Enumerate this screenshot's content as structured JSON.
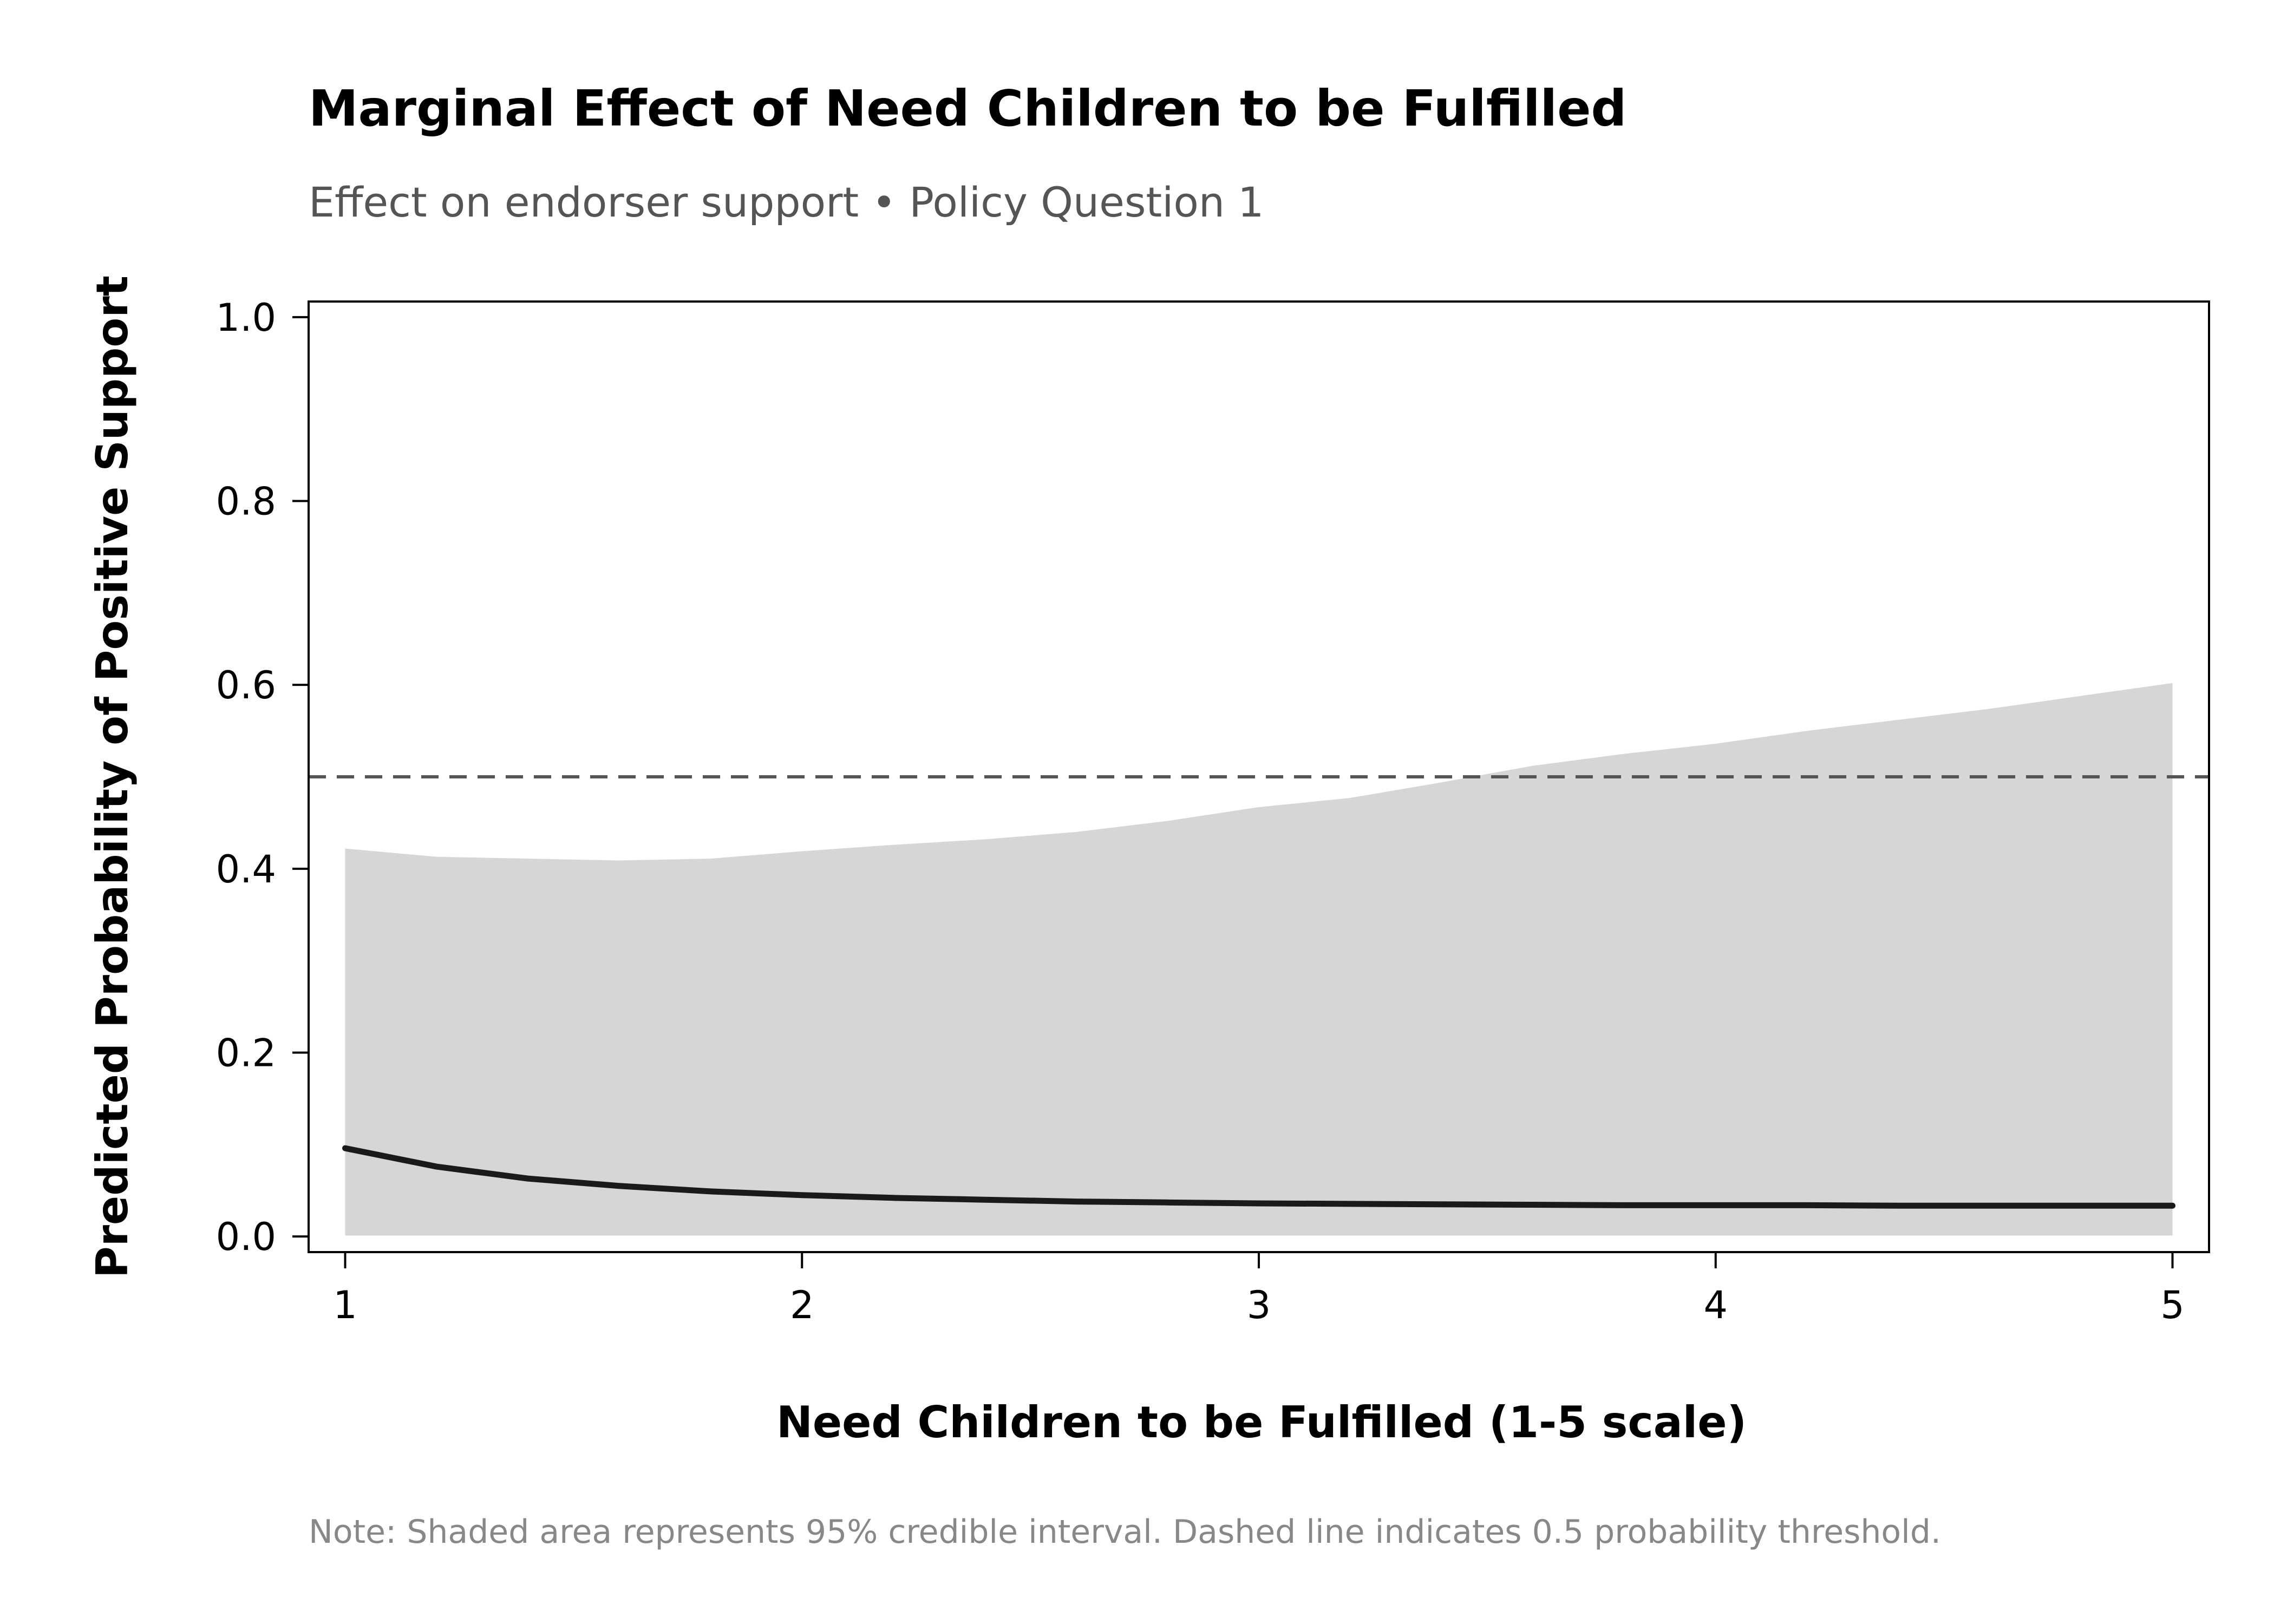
{
  "chart_data": {
    "type": "line",
    "title": "Marginal Effect of Need Children to be Fulfilled",
    "subtitle": "Effect on endorser support • Policy Question 1",
    "xlabel": "Need Children to be Fulfilled (1-5 scale)",
    "ylabel": "Predicted Probability of Positive Support",
    "note": "Note: Shaded area represents 95% credible interval. Dashed line indicates 0.5 probability threshold.",
    "xlim": [
      0.92,
      5.08
    ],
    "ylim": [
      -0.017,
      1.017
    ],
    "xticks": [
      1,
      2,
      3,
      4,
      5
    ],
    "yticks": [
      0.0,
      0.2,
      0.4,
      0.6,
      0.8,
      1.0
    ],
    "ytick_labels": [
      "0.0",
      "0.2",
      "0.4",
      "0.6",
      "0.8",
      "1.0"
    ],
    "xtick_labels": [
      "1",
      "2",
      "3",
      "4",
      "5"
    ],
    "grid": false,
    "threshold": 0.5,
    "x": [
      1.0,
      1.2,
      1.4,
      1.6,
      1.8,
      2.0,
      2.2,
      2.4,
      2.6,
      2.8,
      3.0,
      3.2,
      3.4,
      3.6,
      3.8,
      4.0,
      4.2,
      4.4,
      4.6,
      4.8,
      5.0
    ],
    "mean": [
      0.096,
      0.076,
      0.063,
      0.055,
      0.049,
      0.045,
      0.042,
      0.04,
      0.038,
      0.037,
      0.036,
      0.0355,
      0.035,
      0.0345,
      0.034,
      0.034,
      0.034,
      0.0335,
      0.0335,
      0.0335,
      0.0335
    ],
    "lower": [
      0.001,
      0.001,
      0.001,
      0.001,
      0.001,
      0.001,
      0.001,
      0.001,
      0.001,
      0.001,
      0.001,
      0.001,
      0.001,
      0.001,
      0.001,
      0.001,
      0.001,
      0.001,
      0.001,
      0.001,
      0.001
    ],
    "upper": [
      0.422,
      0.413,
      0.411,
      0.409,
      0.411,
      0.419,
      0.426,
      0.432,
      0.44,
      0.452,
      0.467,
      0.477,
      0.494,
      0.512,
      0.525,
      0.536,
      0.55,
      0.562,
      0.574,
      0.588,
      0.602
    ],
    "colors": {
      "line": "#1a1a1a",
      "band": "#d6d6d6",
      "threshold": "#555555",
      "axes": "#000000"
    }
  }
}
